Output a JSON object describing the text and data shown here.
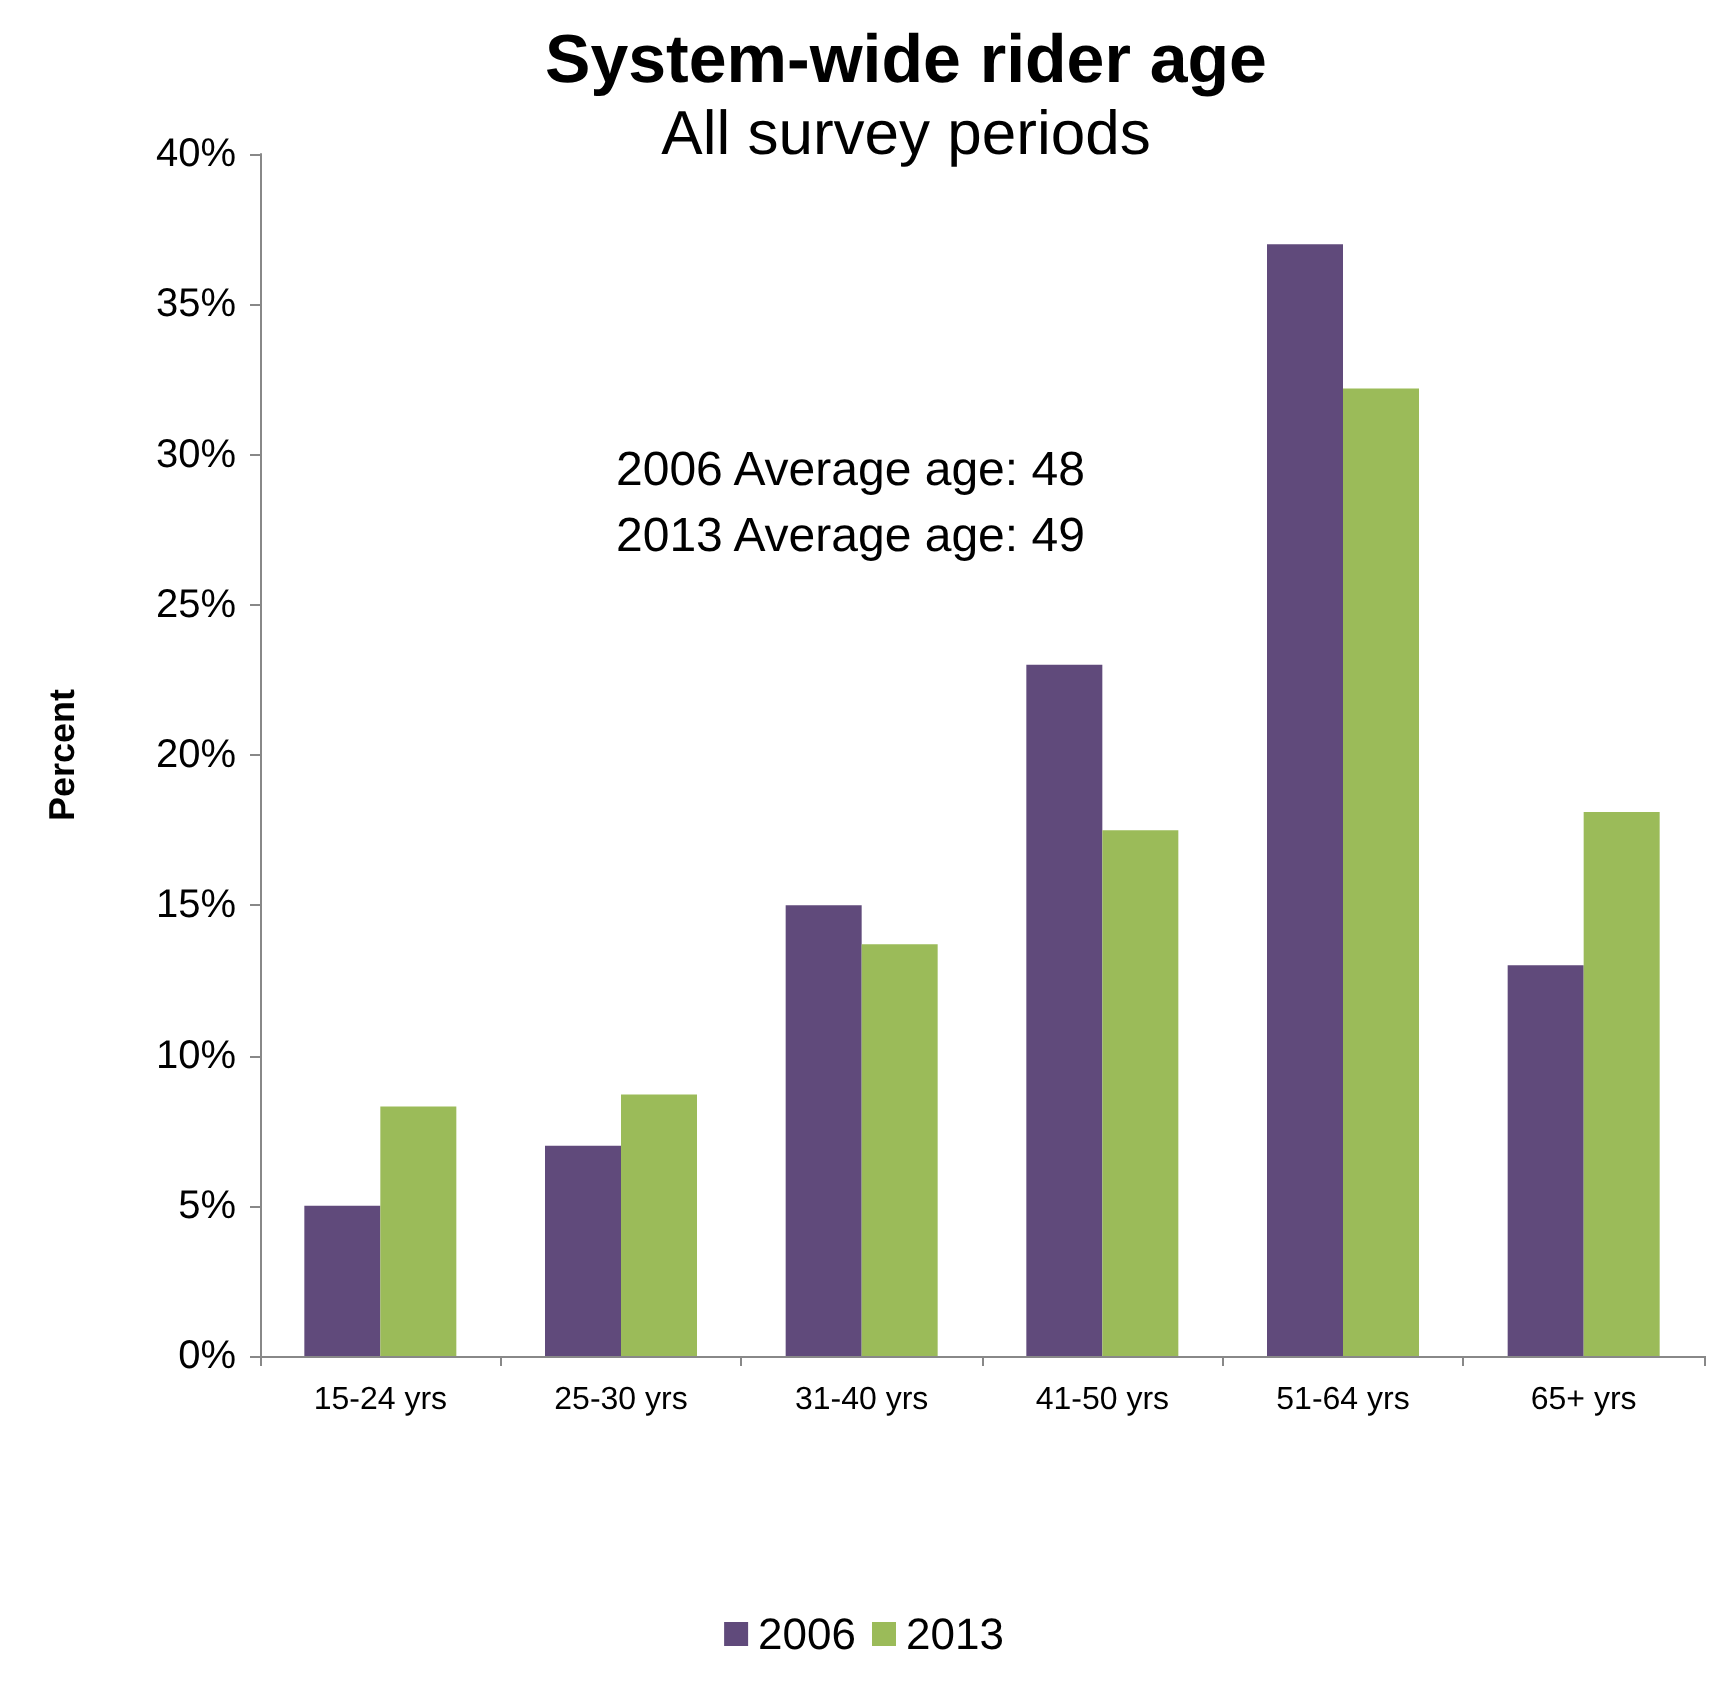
{
  "chart_data": {
    "type": "bar",
    "title": "System-wide rider age",
    "subtitle": "All survey periods",
    "ylabel": "Percent",
    "categories": [
      "15-24 yrs",
      "25-30 yrs",
      "31-40 yrs",
      "41-50 yrs",
      "51-64 yrs",
      "65+ yrs"
    ],
    "series": [
      {
        "name": "2006",
        "color": "#604a7b",
        "values": [
          5,
          7,
          15,
          23,
          37,
          13
        ]
      },
      {
        "name": "2013",
        "color": "#9bbb59",
        "values": [
          8.3,
          8.7,
          13.7,
          17.5,
          32.2,
          18.1
        ]
      }
    ],
    "ylim": [
      0,
      40
    ],
    "yticks": [
      {
        "value": 0,
        "label": "0%"
      },
      {
        "value": 5,
        "label": "5%"
      },
      {
        "value": 10,
        "label": "10%"
      },
      {
        "value": 15,
        "label": "15%"
      },
      {
        "value": 20,
        "label": "20%"
      },
      {
        "value": 25,
        "label": "25%"
      },
      {
        "value": 30,
        "label": "30%"
      },
      {
        "value": 35,
        "label": "35%"
      },
      {
        "value": 40,
        "label": "40%"
      }
    ],
    "annotations": [
      "2006 Average age: 48",
      "2013 Average age: 49"
    ],
    "grid": false,
    "legend": "bottom"
  }
}
